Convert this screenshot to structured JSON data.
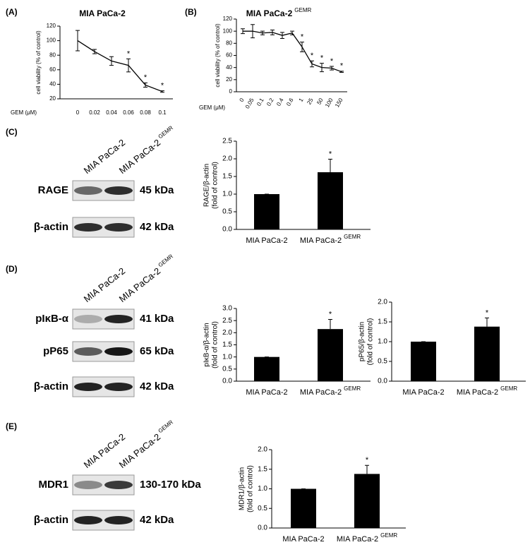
{
  "panel_labels": [
    "(A)",
    "(B)",
    "(C)",
    "(D)",
    "(E)"
  ],
  "blots": [
    {
      "lanes": [
        {
          "text": "MIA PaCa-2"
        },
        {
          "text": "MIA PaCa-2",
          "sup": "GEMR"
        }
      ],
      "bands": [
        {
          "name": "RAGE",
          "size": "45 kDa"
        },
        {
          "name": "β-actin",
          "size": "42 kDa"
        }
      ]
    },
    {
      "lanes": [
        {
          "text": "MIA PaCa-2"
        },
        {
          "text": "MIA PaCa-2",
          "sup": "GEMR"
        }
      ],
      "bands": [
        {
          "name": "pIκB-α",
          "size": "41 kDa"
        },
        {
          "name": "pP65",
          "size": "65 kDa"
        },
        {
          "name": "β-actin",
          "size": "42 kDa"
        }
      ]
    },
    {
      "lanes": [
        {
          "text": "MIA PaCa-2"
        },
        {
          "text": "MIA PaCa-2",
          "sup": "GEMR"
        }
      ],
      "bands": [
        {
          "name": "MDR1",
          "size": "130-170 kDa"
        },
        {
          "name": "β-actin",
          "size": "42 kDa"
        }
      ]
    }
  ],
  "chart_data": [
    {
      "type": "line",
      "title": "MIA PaCa-2",
      "ylabel": [
        "cell viability (% of control)"
      ],
      "xlabel": "GEM (μM)",
      "categories": [
        "0",
        "0.02",
        "0.04",
        "0.06",
        "0.08",
        "0.1"
      ],
      "values": [
        100,
        85,
        72,
        66,
        39,
        30
      ],
      "errors": [
        14,
        3,
        6,
        9,
        3,
        1
      ],
      "sig": [
        null,
        null,
        null,
        "*",
        "*",
        "*"
      ],
      "color": "#000000",
      "ylim": [
        20,
        120
      ],
      "yticks": [
        20,
        40,
        60,
        80,
        100,
        120
      ]
    },
    {
      "type": "line",
      "title": "MIA PaCa-2",
      "title_sup": "GEMR",
      "ylabel": [
        "cell viability (% of control)"
      ],
      "xlabel": "GEM (μM)",
      "categories": [
        "0",
        "0.05",
        "0.1",
        "0.2",
        "0.4",
        "0.6",
        "1",
        "25",
        "50",
        "100",
        "150"
      ],
      "values": [
        100,
        100,
        97,
        98,
        93,
        97,
        74,
        46,
        40,
        39,
        33
      ],
      "errors": [
        4,
        11,
        3,
        4,
        5,
        3,
        8,
        5,
        7,
        3,
        1
      ],
      "sig": [
        null,
        null,
        null,
        null,
        null,
        null,
        "*",
        "*",
        "*",
        "*",
        "*"
      ],
      "color": "#000000",
      "ylim": [
        0,
        120
      ],
      "yticks": [
        0,
        20,
        40,
        60,
        80,
        100,
        120
      ]
    },
    {
      "type": "bar",
      "ylabel": [
        "RAGE/β-actin",
        "(fold of control)"
      ],
      "categories": [
        {
          "text": "MIA PaCa-2"
        },
        {
          "text": "MIA PaCa-2",
          "sup": "GEMR"
        }
      ],
      "values": [
        1,
        1.62
      ],
      "errors": [
        0,
        0.37
      ],
      "sig": [
        null,
        "*"
      ],
      "color": "#000000",
      "ylim": [
        0,
        2.5
      ],
      "yticks": [
        {
          "value": 0,
          "label": "0.0"
        },
        {
          "value": 0.5,
          "label": "0.5"
        },
        {
          "value": 1,
          "label": "1.0"
        },
        {
          "value": 1.5,
          "label": "1.5"
        },
        {
          "value": 2,
          "label": "2.0"
        },
        {
          "value": 2.5,
          "label": "2.5"
        }
      ]
    },
    {
      "type": "bar",
      "ylabel": [
        "pIκB-α/β-actin",
        "(fold of control)"
      ],
      "categories": [
        {
          "text": "MIA PaCa-2"
        },
        {
          "text": "MIA PaCa-2",
          "sup": "GEMR"
        }
      ],
      "values": [
        1,
        2.15
      ],
      "errors": [
        0,
        0.4
      ],
      "sig": [
        null,
        "*"
      ],
      "color": "#000000",
      "ylim": [
        0,
        3
      ],
      "yticks": [
        {
          "value": 0,
          "label": "0.0"
        },
        {
          "value": 0.5,
          "label": "0.5"
        },
        {
          "value": 1,
          "label": "1.0"
        },
        {
          "value": 1.5,
          "label": "1.5"
        },
        {
          "value": 2,
          "label": "2.0"
        },
        {
          "value": 2.5,
          "label": "2.5"
        },
        {
          "value": 3,
          "label": "3.0"
        }
      ]
    },
    {
      "type": "bar",
      "ylabel": [
        "pP65/β-actin",
        "(fold of control)"
      ],
      "categories": [
        {
          "text": "MIA PaCa-2"
        },
        {
          "text": "MIA PaCa-2",
          "sup": "GEMR"
        }
      ],
      "values": [
        1,
        1.38
      ],
      "errors": [
        0,
        0.22
      ],
      "sig": [
        null,
        "*"
      ],
      "color": "#000000",
      "ylim": [
        0,
        2
      ],
      "yticks": [
        {
          "value": 0,
          "label": "0.0"
        },
        {
          "value": 0.5,
          "label": "0.5"
        },
        {
          "value": 1,
          "label": "1.0"
        },
        {
          "value": 1.5,
          "label": "1.5"
        },
        {
          "value": 2,
          "label": "2.0"
        }
      ]
    },
    {
      "type": "bar",
      "ylabel": [
        "MDR1/β-actin",
        "(fold of control)"
      ],
      "categories": [
        {
          "text": "MIA PaCa-2"
        },
        {
          "text": "MIA PaCa-2",
          "sup": "GEMR"
        }
      ],
      "values": [
        1,
        1.38
      ],
      "errors": [
        0,
        0.22
      ],
      "sig": [
        null,
        "*"
      ],
      "color": "#000000",
      "ylim": [
        0,
        2
      ],
      "yticks": [
        {
          "value": 0,
          "label": "0.0"
        },
        {
          "value": 0.5,
          "label": "0.5"
        },
        {
          "value": 1,
          "label": "1.0"
        },
        {
          "value": 1.5,
          "label": "1.5"
        },
        {
          "value": 2,
          "label": "2.0"
        }
      ]
    }
  ]
}
